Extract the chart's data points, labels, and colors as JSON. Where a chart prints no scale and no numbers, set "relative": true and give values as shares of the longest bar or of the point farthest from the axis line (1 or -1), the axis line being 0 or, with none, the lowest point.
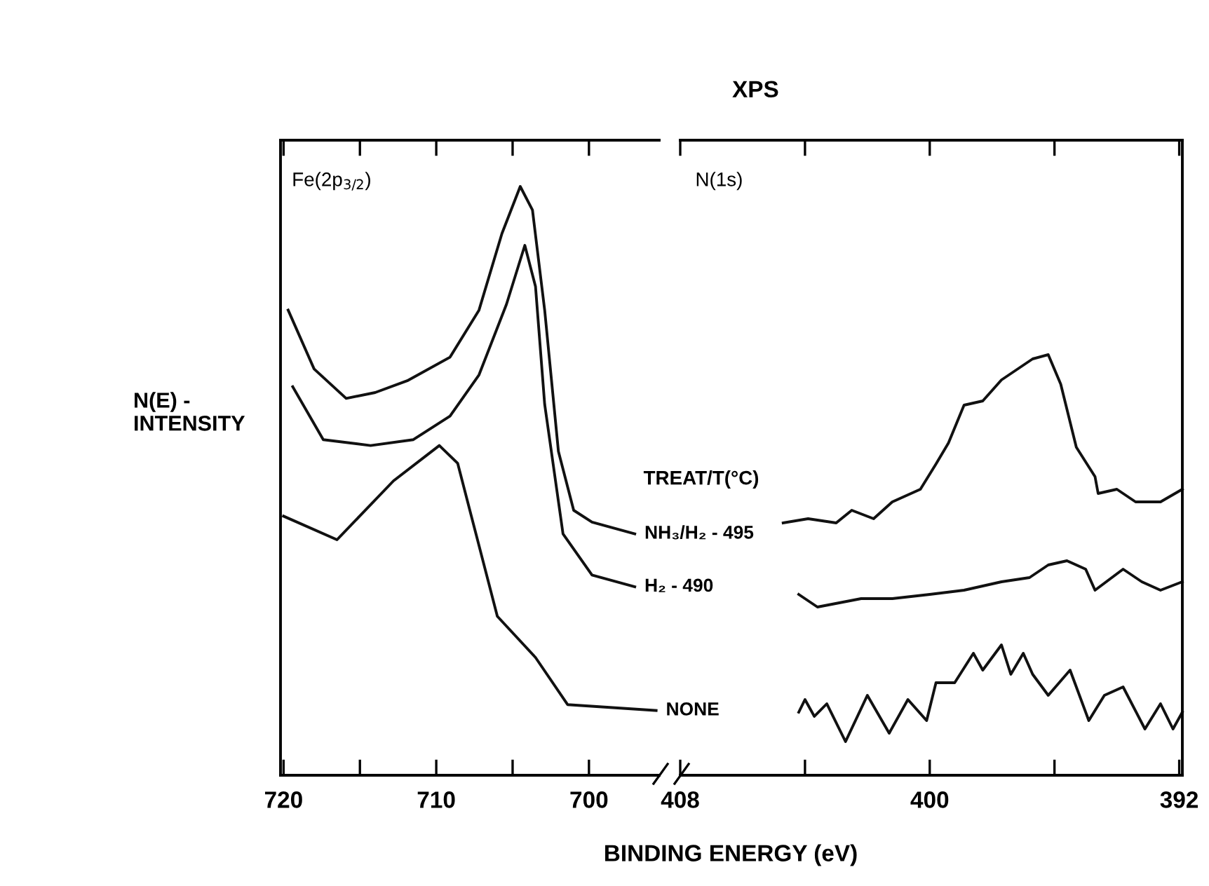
{
  "chart_data": [
    {
      "type": "line",
      "relative": true,
      "ylabel": "N(E) -\nINTENSITY",
      "xlabel": "BINDING ENERGY (eV)",
      "legend_title": "TREAT/T(°C)",
      "annotations": [
        "Fe(2p$_{3/2}$)"
      ],
      "xlim": [
        720.2,
        695.4
      ],
      "xticks": [
        720,
        {
          "value": 715,
          "label": null
        },
        710,
        {
          "value": 705,
          "label": null
        },
        700
      ],
      "tick_labels": "x",
      "grid": false,
      "legend": false,
      "marker": "none",
      "line_style": "solid",
      "series": [
        {
          "name": "NH₃/H₂ - 495",
          "color": "#111111",
          "x": [
            719.7,
            718.0,
            715.9,
            714.0,
            711.9,
            709.1,
            707.2,
            705.7,
            704.5,
            703.7,
            702.9,
            702.0,
            701.0,
            699.8,
            697.0
          ],
          "values": [
            0.79,
            0.69,
            0.64,
            0.65,
            0.67,
            0.71,
            0.79,
            0.92,
            1.0,
            0.96,
            0.79,
            0.55,
            0.45,
            0.43,
            0.41
          ]
        },
        {
          "name": "H₂ - 490",
          "color": "#111111",
          "x": [
            719.4,
            717.4,
            714.3,
            711.5,
            709.1,
            707.2,
            705.4,
            704.2,
            703.5,
            702.9,
            701.7,
            699.8,
            697.0
          ],
          "values": [
            0.66,
            0.57,
            0.56,
            0.57,
            0.61,
            0.68,
            0.8,
            0.9,
            0.83,
            0.63,
            0.41,
            0.34,
            0.32
          ]
        },
        {
          "name": "NONE",
          "color": "#111111",
          "x": [
            720.0,
            716.5,
            712.8,
            709.8,
            708.6,
            707.7,
            706.0,
            703.5,
            701.4,
            695.6
          ],
          "values": [
            0.44,
            0.4,
            0.5,
            0.56,
            0.53,
            0.44,
            0.27,
            0.2,
            0.12,
            0.11
          ]
        }
      ]
    },
    {
      "type": "line",
      "relative": true,
      "title": "XPS",
      "annotations": [
        "N(1s)"
      ],
      "xlim": [
        408,
        391.9
      ],
      "xticks": [
        408,
        {
          "value": 404,
          "label": null
        },
        400,
        {
          "value": 396,
          "label": null
        },
        392
      ],
      "tick_labels": "x",
      "grid": false,
      "legend": false,
      "marker": "none",
      "line_style": "solid",
      "series": [
        {
          "color": "#111111",
          "x": [
            404.7,
            403.9,
            403.0,
            402.5,
            401.8,
            401.2,
            400.3,
            399.8,
            399.4,
            398.9,
            398.3,
            397.7,
            397.1,
            396.7,
            396.2,
            395.8,
            395.3,
            394.7,
            394.6,
            394.0,
            393.4,
            392.6,
            391.9
          ],
          "values": [
            0.6,
            0.61,
            0.6,
            0.63,
            0.61,
            0.65,
            0.68,
            0.74,
            0.79,
            0.88,
            0.89,
            0.94,
            0.97,
            0.99,
            1.0,
            0.93,
            0.78,
            0.71,
            0.67,
            0.68,
            0.65,
            0.65,
            0.68
          ]
        },
        {
          "color": "#111111",
          "x": [
            404.2,
            403.6,
            402.2,
            401.2,
            400.0,
            398.9,
            397.7,
            396.8,
            396.2,
            395.6,
            395.0,
            394.7,
            393.8,
            393.2,
            392.6,
            391.9
          ],
          "values": [
            0.43,
            0.4,
            0.42,
            0.42,
            0.43,
            0.44,
            0.46,
            0.47,
            0.5,
            0.51,
            0.49,
            0.44,
            0.49,
            0.46,
            0.44,
            0.46
          ]
        },
        {
          "color": "#111111",
          "x": [
            404.2,
            404.0,
            403.7,
            403.3,
            402.7,
            402.0,
            401.3,
            400.7,
            400.1,
            399.8,
            399.2,
            398.6,
            398.3,
            397.7,
            397.4,
            397.0,
            396.7,
            396.2,
            395.5,
            394.9,
            394.4,
            393.8,
            393.1,
            392.6,
            392.2,
            391.9
          ],
          "values": [
            0.15,
            0.18,
            0.14,
            0.17,
            0.08,
            0.19,
            0.1,
            0.18,
            0.13,
            0.22,
            0.22,
            0.29,
            0.25,
            0.31,
            0.24,
            0.29,
            0.24,
            0.19,
            0.25,
            0.13,
            0.19,
            0.21,
            0.11,
            0.17,
            0.11,
            0.15
          ]
        }
      ]
    }
  ]
}
